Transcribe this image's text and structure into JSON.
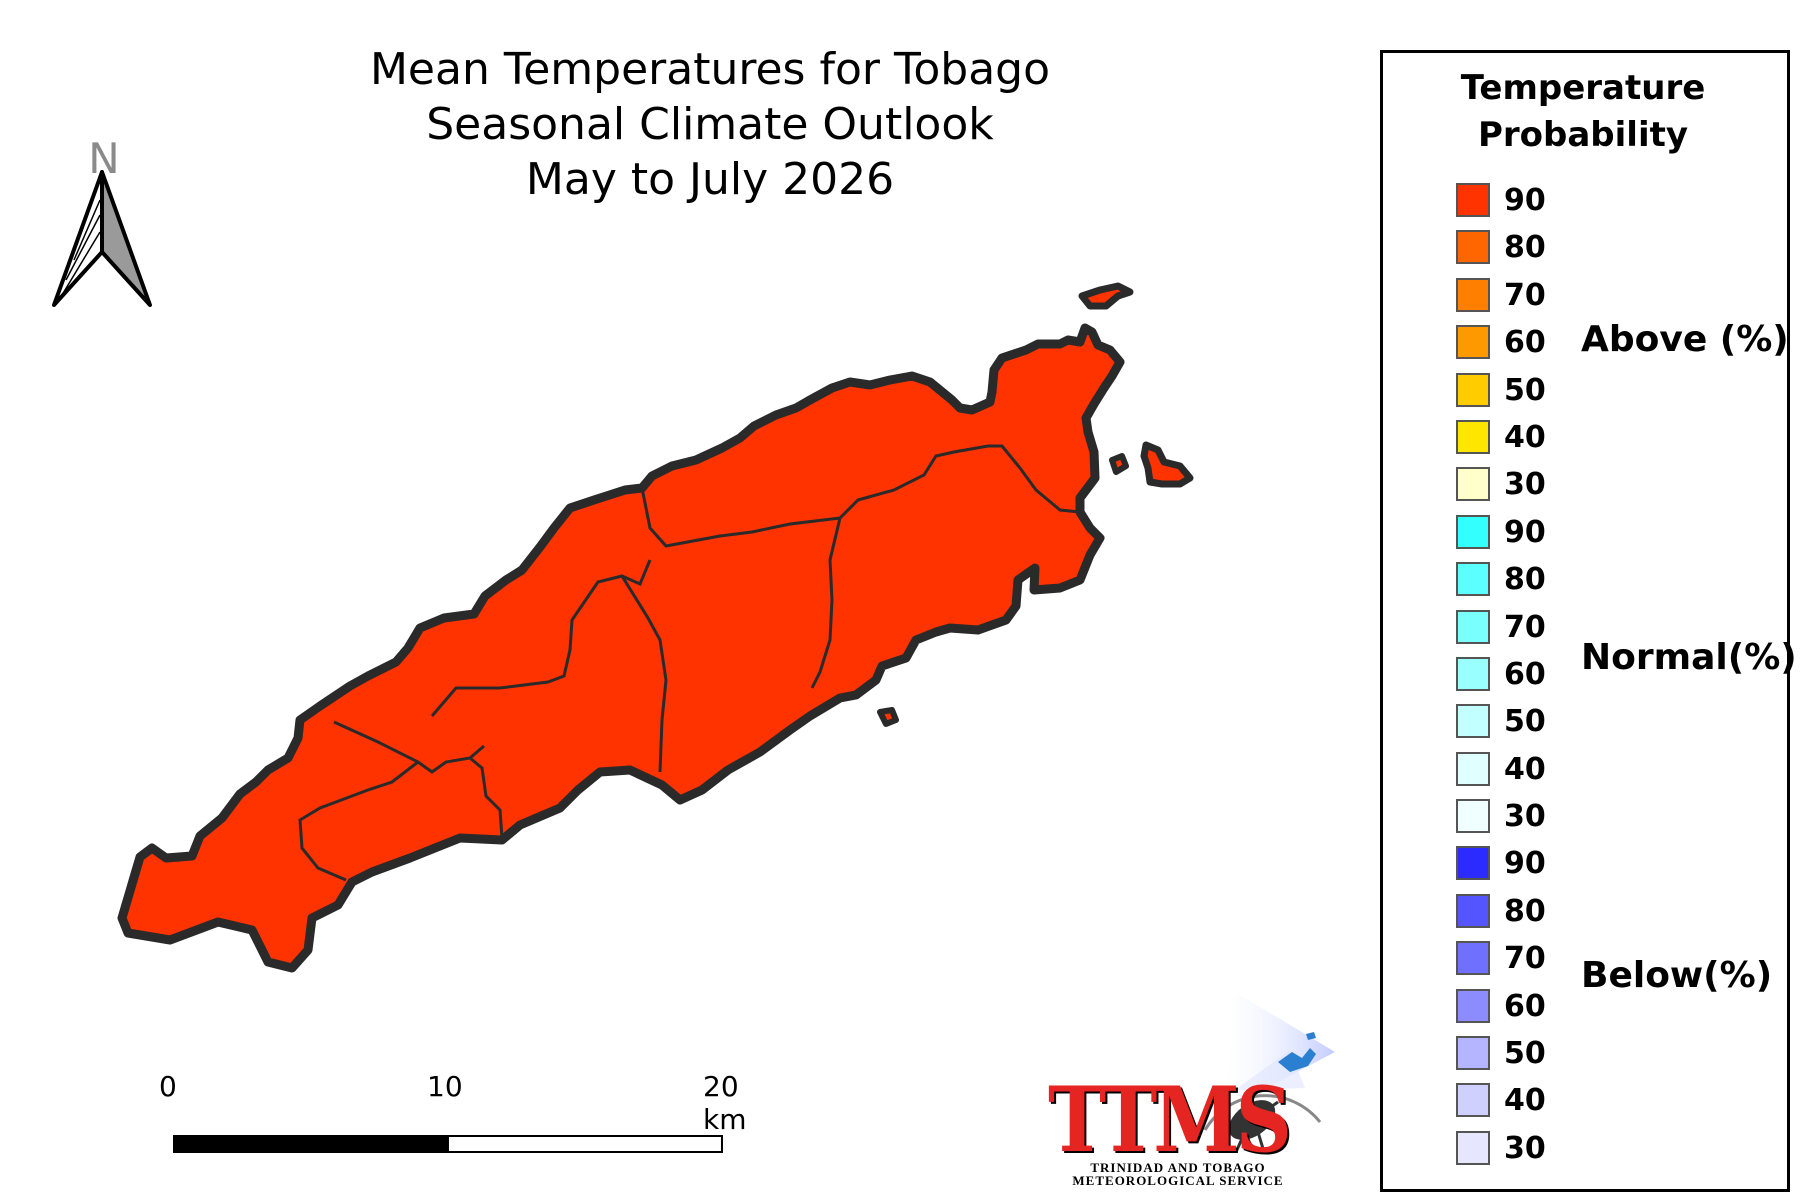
{
  "title": {
    "line1": "Mean Temperatures for Tobago",
    "line2": "Seasonal Climate Outlook",
    "line3": "May to July 2026"
  },
  "north_arrow": {
    "label": "N",
    "icon": "north-arrow-icon"
  },
  "map": {
    "region": "Tobago",
    "fill_color": "#ff3300",
    "outline_color": "#2a2a2a",
    "forecast": {
      "category": "Above",
      "probability": 90
    }
  },
  "scale_bar": {
    "labels": [
      "0",
      "10",
      "20 km"
    ]
  },
  "legend": {
    "title_line1": "Temperature",
    "title_line2": "Probability",
    "categories": [
      {
        "name": "Above (%)",
        "items": [
          {
            "value": "90",
            "color": "#ff3300"
          },
          {
            "value": "80",
            "color": "#ff6600"
          },
          {
            "value": "70",
            "color": "#ff7f00"
          },
          {
            "value": "60",
            "color": "#ff9900"
          },
          {
            "value": "50",
            "color": "#ffcc00"
          },
          {
            "value": "40",
            "color": "#ffe600"
          },
          {
            "value": "30",
            "color": "#ffffcc"
          }
        ]
      },
      {
        "name": "Normal(%)",
        "items": [
          {
            "value": "90",
            "color": "#33ffff"
          },
          {
            "value": "80",
            "color": "#5cffff"
          },
          {
            "value": "70",
            "color": "#7affff"
          },
          {
            "value": "60",
            "color": "#99ffff"
          },
          {
            "value": "50",
            "color": "#c2ffff"
          },
          {
            "value": "40",
            "color": "#e0ffff"
          },
          {
            "value": "30",
            "color": "#f0ffff"
          }
        ]
      },
      {
        "name": "Below(%)",
        "items": [
          {
            "value": "90",
            "color": "#2b2bff"
          },
          {
            "value": "80",
            "color": "#5555ff"
          },
          {
            "value": "70",
            "color": "#7070ff"
          },
          {
            "value": "60",
            "color": "#8c8cff"
          },
          {
            "value": "50",
            "color": "#b5b5ff"
          },
          {
            "value": "40",
            "color": "#d0d0ff"
          },
          {
            "value": "30",
            "color": "#e6e6ff"
          }
        ]
      }
    ]
  },
  "logo": {
    "acronym": "TTMS",
    "line1": "TRINIDAD AND TOBAGO",
    "line2": "METEOROLOGICAL SERVICE"
  }
}
